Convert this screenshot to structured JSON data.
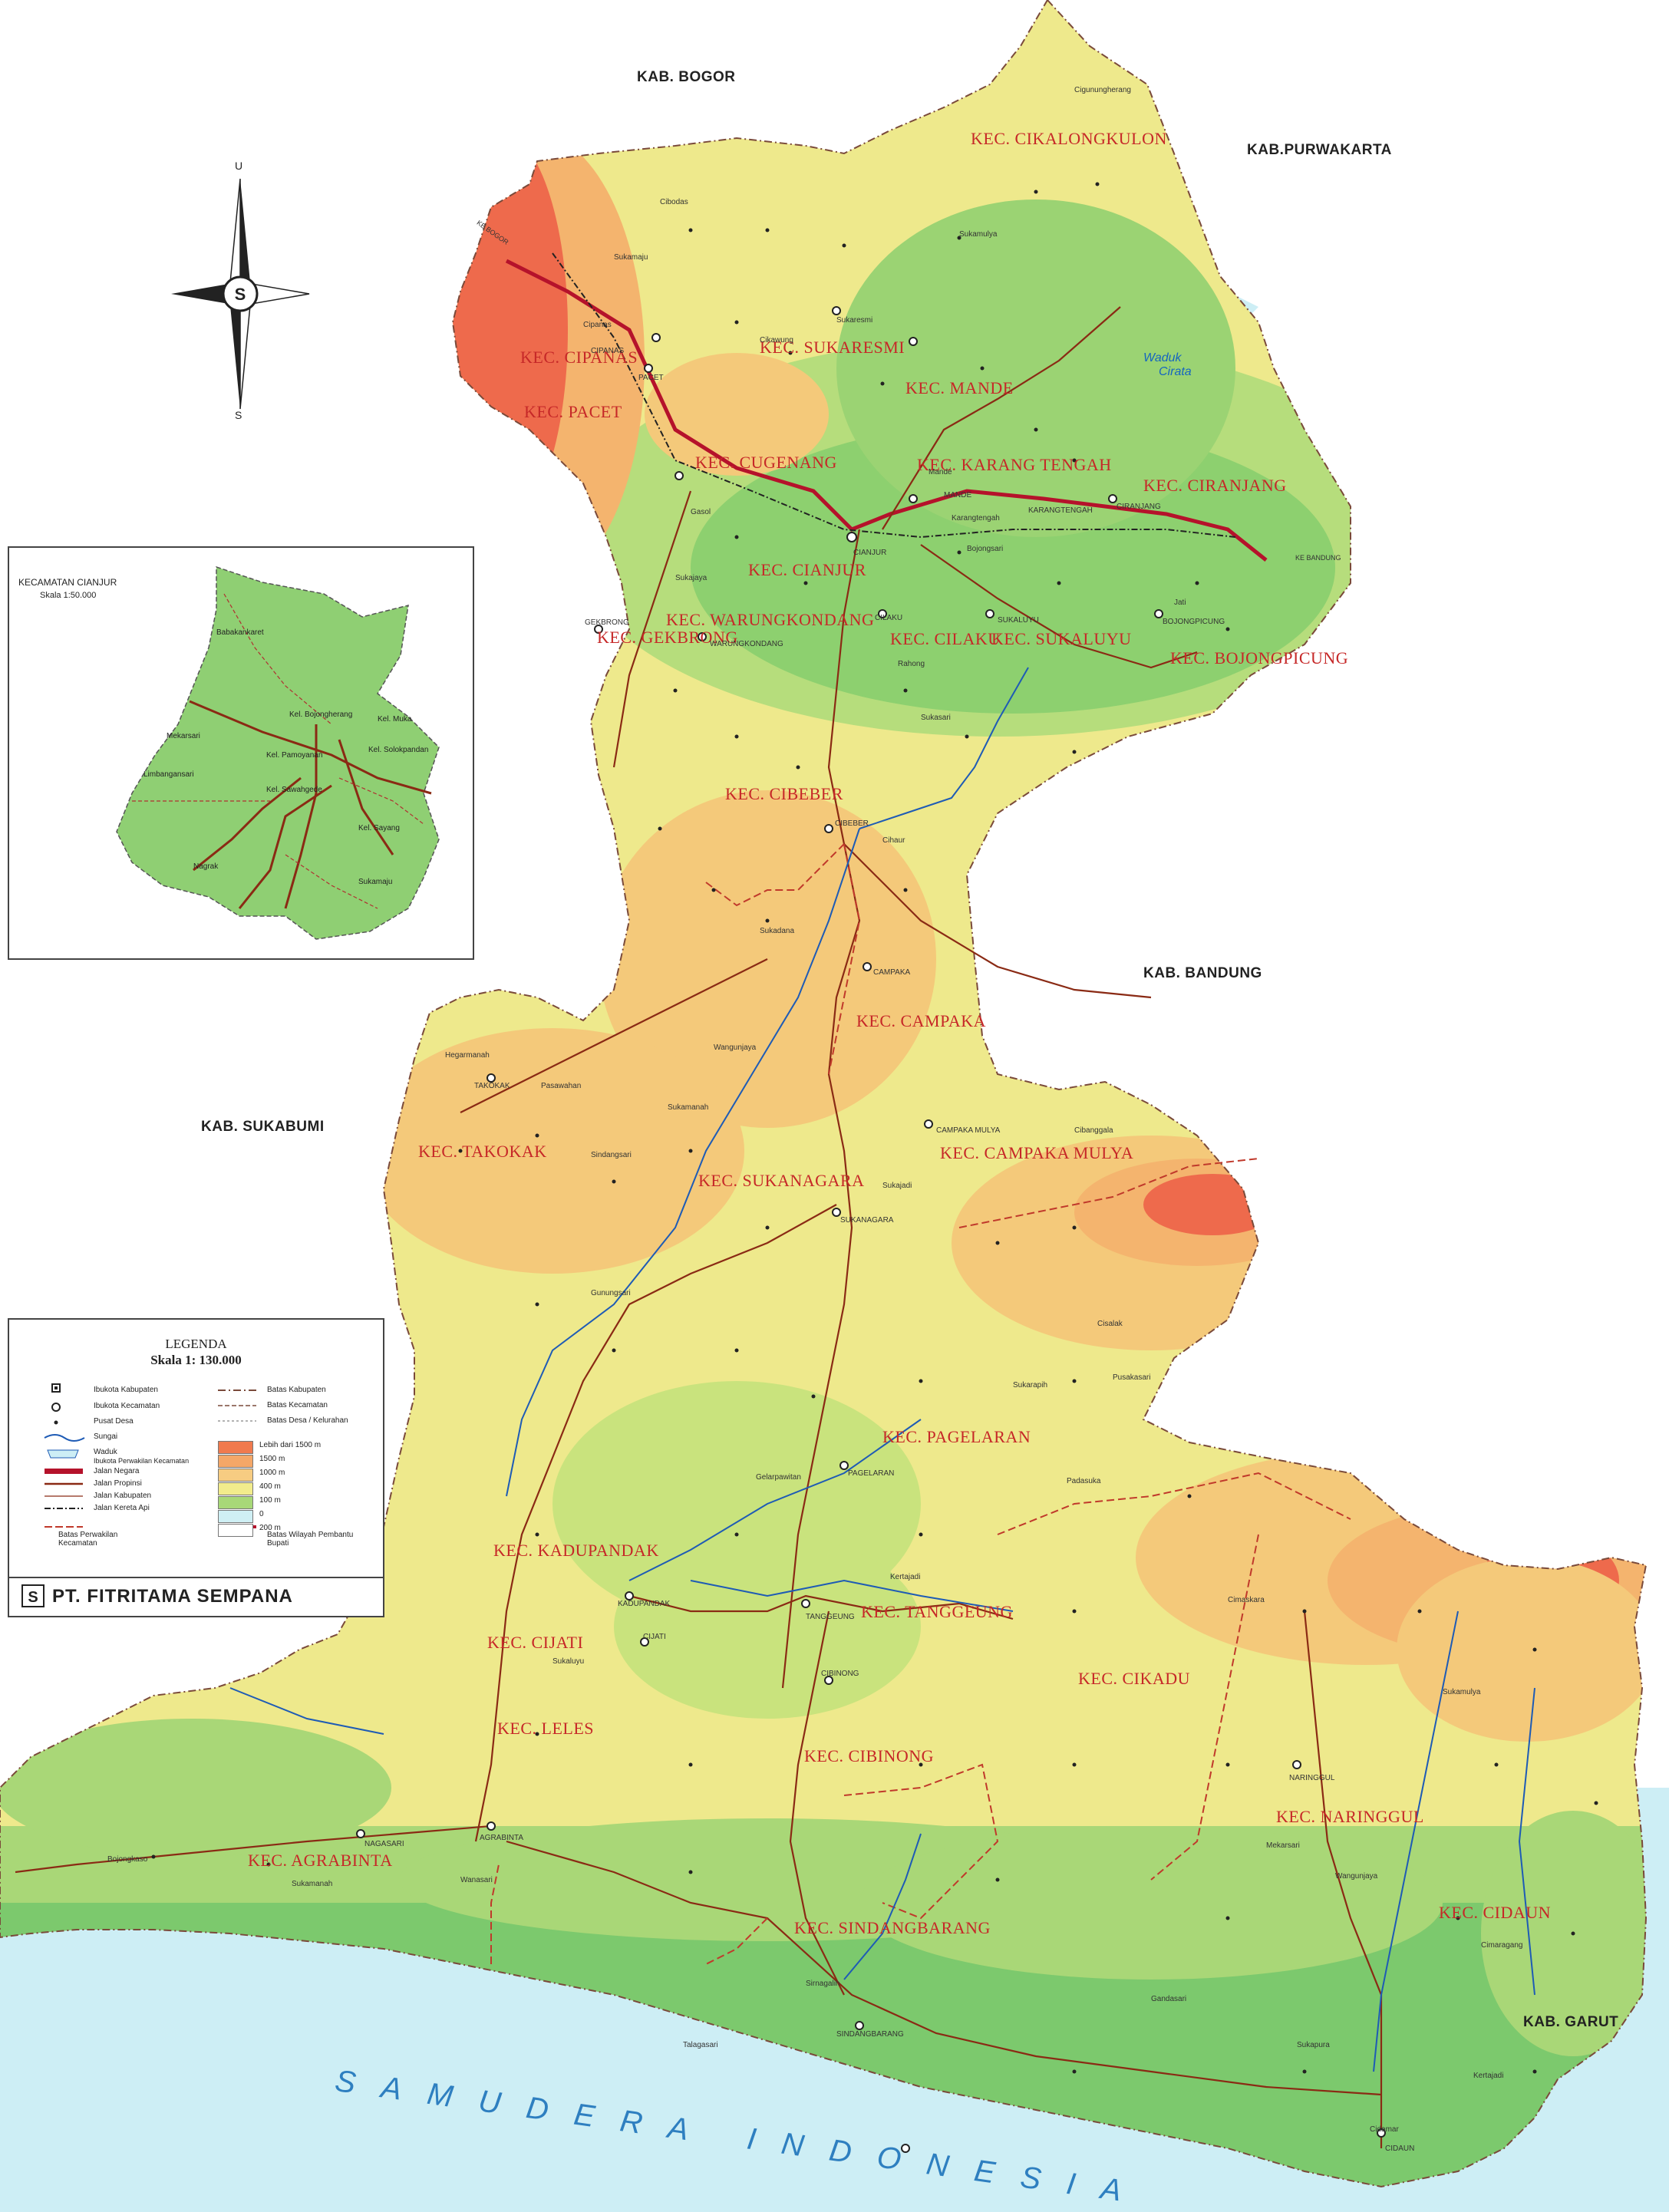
{
  "map": {
    "neighbors": {
      "bogor": "KAB. BOGOR",
      "purwakarta": "KAB.PURWAKARTA",
      "bandung": "KAB. BANDUNG",
      "sukabumi": "KAB. SUKABUMI",
      "garut": "KAB. GARUT"
    },
    "ocean": "SAMUDERA INDONESIA",
    "reservoir": [
      "Waduk",
      "Cirata"
    ],
    "edge_labels": {
      "ke_bogor": "KE BOGOR",
      "ke_bandung": "KE BANDUNG"
    },
    "kecamatan": [
      "KEC. CIKALONGKULON",
      "KEC. CIPANAS",
      "KEC. SUKARESMI",
      "KEC. MANDE",
      "KEC. PACET",
      "KEC. CUGENANG",
      "KEC. KARANG TENGAH",
      "KEC. CIRANJANG",
      "KEC. CIANJUR",
      "KEC. WARUNGKONDANG",
      "KEC. GEKBRONG",
      "KEC. CILAKU",
      "KEC. SUKALUYU",
      "KEC. BOJONGPICUNG",
      "KEC. CIBEBER",
      "KEC. CAMPAKA",
      "KEC. TAKOKAK",
      "KEC. SUKANAGARA",
      "KEC. CAMPAKA MULYA",
      "KEC. PAGELARAN",
      "KEC. KADUPANDAK",
      "KEC. TANGGEUNG",
      "KEC. CIJATI",
      "KEC. CIKADU",
      "KEC. LELES",
      "KEC. CIBINONG",
      "KEC. NARINGGUL",
      "KEC. AGRABINTA",
      "KEC. SINDANGBARANG",
      "KEC. CIDAUN"
    ],
    "desa": [
      "Cigunungherang",
      "Sukamulya",
      "Cibodas",
      "Sukamaju",
      "Cipanas",
      "CIPANAS",
      "PACET",
      "Sukaresmi",
      "Cikawung",
      "Mande",
      "MANDE",
      "Karangtengah",
      "KARANGTENGAH",
      "CIRANJANG",
      "Gasol",
      "Sukajaya",
      "CIANJUR",
      "Bojongsari",
      "BOJONGPICUNG",
      "Jati",
      "GEKBRONG",
      "WARUNGKONDANG",
      "CILAKU",
      "Rahong",
      "SUKALUYU",
      "Sukasari",
      "CIBEBER",
      "Cihaur",
      "CAMPAKA",
      "Sukadana",
      "Wangunjaya",
      "Hegarmanah",
      "TAKOKAK",
      "Pasawahan",
      "Sukamanah",
      "CAMPAKA MULYA",
      "SUKANAGARA",
      "Sukajadi",
      "Sindangsari",
      "Gunungsari",
      "Cibanggala",
      "Cisalak",
      "Sukarapih",
      "Pusakasari",
      "PAGELARAN",
      "Gelarpawitan",
      "Padasuka",
      "KADUPANDAK",
      "TANGGEUNG",
      "Kertajadi",
      "CIJATI",
      "Sukaluyu",
      "Cimaskara",
      "CIBINONG",
      "Sukamulya",
      "NARINGGUL",
      "Wanasari",
      "NAGASARI",
      "AGRABINTA",
      "Bojongkaso",
      "Sukamanah",
      "Mekarsari",
      "Wangunjaya",
      "SINDANGBARANG",
      "Talagasari",
      "Sirnagalih",
      "Cidamar",
      "CIDAUN",
      "Kertajadi",
      "Cimaragang",
      "Sukapura",
      "Gandasari"
    ]
  },
  "inset": {
    "title": "KECAMATAN CIANJUR",
    "scale": "Skala 1:50.000",
    "labels": [
      "Babakankaret",
      "Kel. Bojongherang",
      "Mekarsari",
      "Kel. Muka",
      "Kel. Pamoyanan",
      "Kel. Solokpandan",
      "Limbangansari",
      "Kel. Sawahgede",
      "Kel. Sayang",
      "Nagrak",
      "Sukamaju"
    ]
  },
  "compass": {
    "north": "U",
    "south": "S"
  },
  "legend": {
    "title": "LEGENDA",
    "scale": "Skala 1: 130.000",
    "items": {
      "ibukota_kabupaten": "Ibukota Kabupaten",
      "ibukota_kecamatan": "Ibukota Kecamatan",
      "pusat_desa": "Pusat Desa",
      "sungai": "Sungai",
      "waduk": "Waduk",
      "ibukota_perwakilan": "Ibukota Perwakilan Kecamatan",
      "jalan_negara": "Jalan Negara",
      "jalan_propinsi": "Jalan Propinsi",
      "jalan_kabupaten": "Jalan Kabupaten",
      "jalan_kereta_api": "Jalan Kereta Api",
      "batas_perwakilan": "Batas Perwakilan Kecamatan",
      "batas_kabupaten": "Batas Kabupaten",
      "batas_kecamatan": "Batas Kecamatan",
      "batas_desa": "Batas Desa / Kelurahan",
      "batas_wilayah": "Batas Wilayah Pembantu Bupati"
    },
    "elevation": [
      {
        "label": "Lebih dari 1500 m",
        "color": "#f07a4e"
      },
      {
        "label": "1500 m",
        "color": "#f4a768"
      },
      {
        "label": "1000 m",
        "color": "#f7cc82"
      },
      {
        "label": "400  m",
        "color": "#f2ec8c"
      },
      {
        "label": "100  m",
        "color": "#a8d878"
      },
      {
        "label": "0",
        "color": "#cfeff4"
      },
      {
        "label": "200  m",
        "color": "#ffffff"
      }
    ],
    "publisher": "PT. FITRITAMA SEMPANA"
  },
  "colors": {
    "sea": "#cdeef5",
    "lowland": "#7cc96d",
    "hill": "#c9e37d",
    "upland": "#eee98c",
    "mountain": "#f4b46e",
    "peak": "#ee6a4c",
    "road_national": "#b5122b",
    "road": "#8a2a14",
    "boundary": "#b5122b",
    "river": "#1e5bb5",
    "kec_label": "#c62828"
  }
}
